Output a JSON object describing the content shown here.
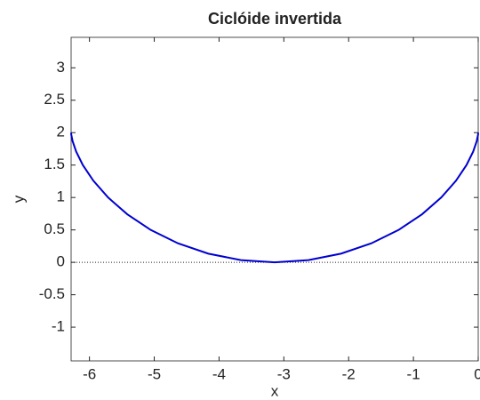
{
  "chart_data": {
    "type": "line",
    "title": "Ciclóide invertida",
    "x_label": "x",
    "y_label": "y",
    "x": [
      -6.2832,
      -6.2802,
      -6.2596,
      -6.2049,
      -6.102,
      -5.9401,
      -5.7124,
      -5.4165,
      -5.0548,
      -4.6341,
      -4.1652,
      -3.6622,
      -3.1416,
      -2.621,
      -2.118,
      -1.6491,
      -1.2284,
      -0.8667,
      -0.5708,
      -0.3431,
      -0.1812,
      -0.0783,
      -0.0236,
      -0.003,
      0
    ],
    "series": [
      {
        "color": "#0000d0",
        "values": [
          2,
          1.9659,
          1.866,
          1.7071,
          1.5,
          1.2588,
          1,
          0.7412,
          0.5,
          0.2929,
          0.134,
          0.0341,
          0,
          0.0341,
          0.134,
          0.2929,
          0.5,
          0.7412,
          1,
          1.2588,
          1.5,
          1.7071,
          1.866,
          1.9659,
          2
        ]
      }
    ],
    "reference_line": 0,
    "xlim": [
      -6.2832,
      0
    ],
    "ylim": [
      -1.52,
      3.47
    ],
    "xticks": [
      -6,
      -5,
      -4,
      -3,
      -2,
      -1,
      0
    ],
    "yticks": [
      -1,
      -0.5,
      0,
      0.5,
      1,
      1.5,
      2,
      2.5,
      3
    ]
  }
}
